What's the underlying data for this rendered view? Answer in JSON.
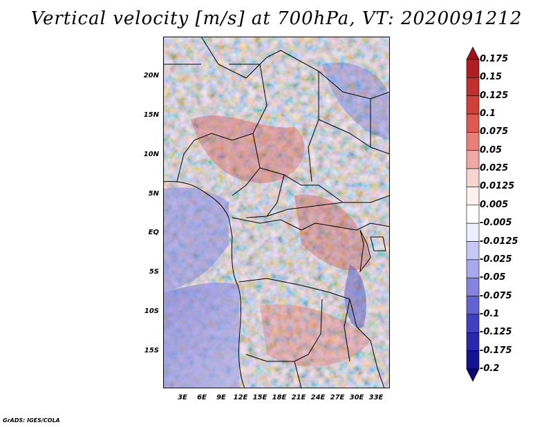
{
  "title": "Vertical velocity [m/s] at 700hPa, VT: 2020091212",
  "credit": "GrADS: IGES/COLA",
  "map": {
    "region_lat_range": [
      "-20",
      "25"
    ],
    "region_lon_range": [
      "0",
      "35"
    ],
    "lat_ticks": [
      "20N",
      "15N",
      "10N",
      "5N",
      "EQ",
      "5S",
      "10S",
      "15S"
    ],
    "lon_ticks": [
      "3E",
      "6E",
      "9E",
      "12E",
      "15E",
      "18E",
      "21E",
      "24E",
      "27E",
      "30E",
      "33E"
    ]
  },
  "colorbar": {
    "labels": [
      "0.175",
      "0.15",
      "0.125",
      "0.1",
      "0.075",
      "0.05",
      "0.025",
      "0.0125",
      "0.005",
      "-0.005",
      "-0.0125",
      "-0.025",
      "-0.05",
      "-0.075",
      "-0.1",
      "-0.125",
      "-0.175",
      "-0.2"
    ],
    "colors": [
      "#a0101c",
      "#b01e24",
      "#c0302c",
      "#d04038",
      "#dc5a50",
      "#e88078",
      "#f0a8a2",
      "#f8d4d0",
      "#fdf0ee",
      "#ffffff",
      "#eeeefe",
      "#c8c8f4",
      "#a8a8ec",
      "#8484e0",
      "#6262d2",
      "#4040c2",
      "#2828ac",
      "#141490",
      "#0a0a70"
    ]
  }
}
